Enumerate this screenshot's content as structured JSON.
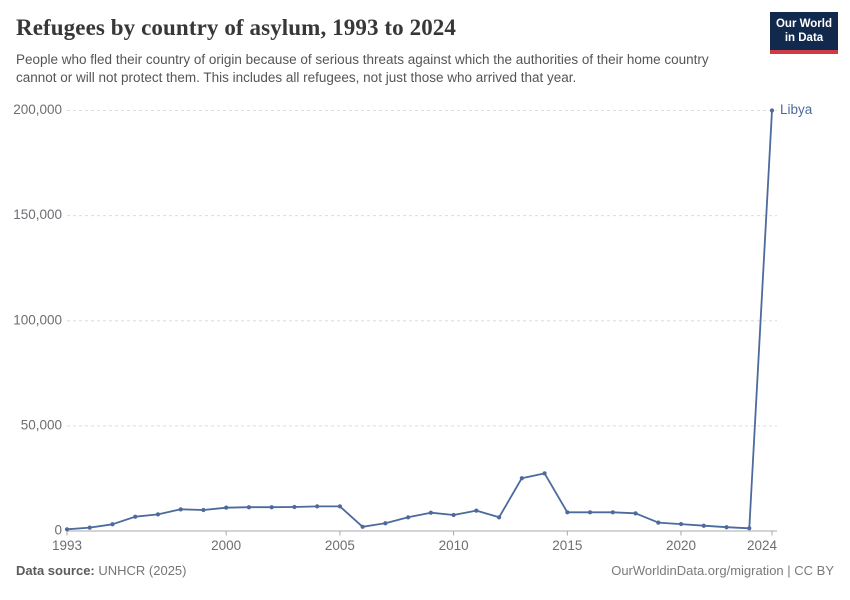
{
  "header": {
    "title": "Refugees by country of asylum, 1993 to 2024",
    "subtitle": "People who fled their country of origin because of serious threats against which the authorities of their home country cannot or will not protect them. This includes all refugees, not just those who arrived that year.",
    "logo": {
      "line1": "Our World",
      "line2": "in Data"
    }
  },
  "chart_data": {
    "type": "line",
    "title": "Refugees by country of asylum, 1993 to 2024",
    "x": [
      1993,
      1994,
      1995,
      1996,
      1997,
      1998,
      1999,
      2000,
      2001,
      2002,
      2003,
      2004,
      2005,
      2006,
      2007,
      2008,
      2009,
      2010,
      2011,
      2012,
      2013,
      2014,
      2015,
      2016,
      2017,
      2018,
      2019,
      2020,
      2021,
      2022,
      2023,
      2024
    ],
    "series": [
      {
        "name": "Libya",
        "color": "#4C6A9C",
        "values": [
          800,
          1600,
          3200,
          6800,
          7900,
          10300,
          10000,
          11100,
          11300,
          11300,
          11400,
          11700,
          11700,
          2000,
          3700,
          6500,
          8700,
          7600,
          9700,
          6500,
          25100,
          27400,
          8900,
          8900,
          8900,
          8400,
          4000,
          3300,
          2500,
          1800,
          1300,
          200000
        ]
      }
    ],
    "xlim": [
      1993,
      2024
    ],
    "ylim": [
      0,
      200000
    ],
    "x_ticks": [
      1993,
      2000,
      2005,
      2010,
      2015,
      2020,
      2024
    ],
    "x_tick_labels": [
      "1993",
      "2000",
      "2005",
      "2010",
      "2015",
      "2020",
      "2024"
    ],
    "y_ticks": [
      0,
      50000,
      100000,
      150000,
      200000
    ],
    "y_tick_labels": [
      "0",
      "50,000",
      "100,000",
      "150,000",
      "200,000"
    ],
    "grid": "horizontal-dashed",
    "legend_position": "end-of-line-label",
    "end_label": "Libya"
  },
  "footer": {
    "source_label": "Data source:",
    "source_value": " UNHCR (2025)",
    "attribution": "OurWorldinData.org/migration | CC BY"
  },
  "colors": {
    "line": "#4C6A9C",
    "grid": "#dcdcdc",
    "axis": "#a9a9a9",
    "tick_label": "#6e6e73",
    "logo_bg": "#12294e",
    "logo_bar": "#cf3b44"
  }
}
